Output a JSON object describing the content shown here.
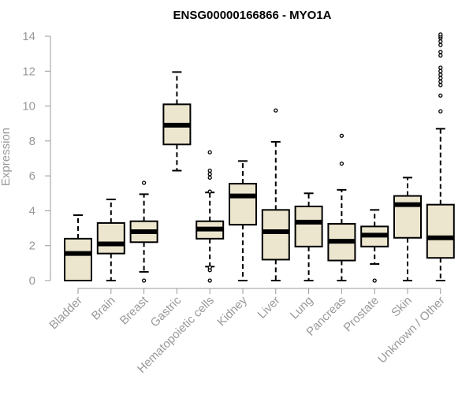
{
  "chart_data": {
    "type": "boxplot",
    "title": "ENSG00000166866 - MYO1A",
    "ylabel": "Expression",
    "xlabel": "",
    "ylim": [
      0,
      14
    ],
    "yticks": [
      0,
      2,
      4,
      6,
      8,
      10,
      12,
      14
    ],
    "grid": false,
    "colors": {
      "box_fill": "#ede6cf",
      "box_stroke": "#000000",
      "median": "#000000",
      "axis": "#999999",
      "title": "#000000"
    },
    "categories": [
      "Bladder",
      "Brain",
      "Breast",
      "Gastric",
      "Hematopoietic cells",
      "Kidney",
      "Liver",
      "Lung",
      "Pancreas",
      "Prostate",
      "Skin",
      "Unknown / Other"
    ],
    "boxes": [
      {
        "category": "Bladder",
        "whisker_low": 0,
        "q1": 0,
        "median": 1.55,
        "q3": 2.4,
        "whisker_high": 3.75,
        "outliers": []
      },
      {
        "category": "Brain",
        "whisker_low": 0,
        "q1": 1.55,
        "median": 2.1,
        "q3": 3.3,
        "whisker_high": 4.65,
        "outliers": []
      },
      {
        "category": "Breast",
        "whisker_low": 0.5,
        "q1": 2.2,
        "median": 2.8,
        "q3": 3.4,
        "whisker_high": 4.95,
        "outliers": [
          0,
          5.6
        ]
      },
      {
        "category": "Gastric",
        "whisker_low": 6.3,
        "q1": 7.8,
        "median": 8.9,
        "q3": 10.1,
        "whisker_high": 11.95,
        "outliers": []
      },
      {
        "category": "Hematopoietic cells",
        "whisker_low": 0.8,
        "q1": 2.4,
        "median": 2.95,
        "q3": 3.4,
        "whisker_high": 5.05,
        "outliers": [
          0,
          0.6,
          0.75,
          5.1,
          5.9,
          6.1,
          6.3,
          7.35
        ]
      },
      {
        "category": "Kidney",
        "whisker_low": 0,
        "q1": 3.2,
        "median": 4.85,
        "q3": 5.55,
        "whisker_high": 6.85,
        "outliers": []
      },
      {
        "category": "Liver",
        "whisker_low": 0,
        "q1": 1.2,
        "median": 2.8,
        "q3": 4.05,
        "whisker_high": 7.95,
        "outliers": [
          9.75
        ]
      },
      {
        "category": "Lung",
        "whisker_low": 0,
        "q1": 1.95,
        "median": 3.35,
        "q3": 4.25,
        "whisker_high": 5.0,
        "outliers": []
      },
      {
        "category": "Pancreas",
        "whisker_low": 0,
        "q1": 1.15,
        "median": 2.25,
        "q3": 3.25,
        "whisker_high": 5.2,
        "outliers": [
          6.7,
          8.3
        ]
      },
      {
        "category": "Prostate",
        "whisker_low": 0.95,
        "q1": 1.95,
        "median": 2.6,
        "q3": 3.1,
        "whisker_high": 4.05,
        "outliers": [
          0
        ]
      },
      {
        "category": "Skin",
        "whisker_low": 0,
        "q1": 2.45,
        "median": 4.35,
        "q3": 4.85,
        "whisker_high": 5.9,
        "outliers": []
      },
      {
        "category": "Unknown / Other",
        "whisker_low": 0,
        "q1": 1.3,
        "median": 2.45,
        "q3": 4.35,
        "whisker_high": 8.7,
        "outliers": [
          9.7,
          10.6,
          11.2,
          11.4,
          11.6,
          11.8,
          12.0,
          12.2,
          12.9,
          13.1,
          13.5,
          13.7,
          13.9,
          14.0,
          14.1
        ]
      }
    ]
  }
}
